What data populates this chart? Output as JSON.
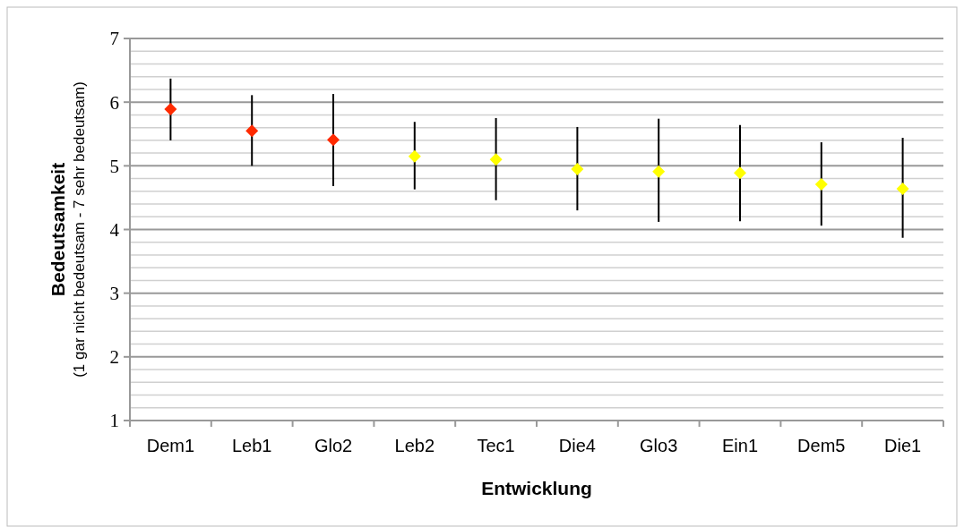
{
  "chart_data": {
    "type": "scatter",
    "xlabel": "Entwicklung",
    "ylabel": "Bedeutsamkeit\n(1 gar nicht bedeutsam - 7 sehr bedeutsam)",
    "categories": [
      "Dem1",
      "Leb1",
      "Glo2",
      "Leb2",
      "Tec1",
      "Die4",
      "Glo3",
      "Ein1",
      "Dem5",
      "Die1"
    ],
    "values": [
      5.89,
      5.55,
      5.41,
      5.15,
      5.1,
      4.95,
      4.91,
      4.89,
      4.71,
      4.64
    ],
    "colors": [
      "#ff2a00",
      "#ff2a00",
      "#ff2a00",
      "#ffff00",
      "#ffff00",
      "#ffff00",
      "#ffff00",
      "#ffff00",
      "#ffff00",
      "#ffff00"
    ],
    "errors": [
      [
        5.4,
        6.37
      ],
      [
        5.0,
        6.11
      ],
      [
        4.68,
        6.13
      ],
      [
        4.63,
        5.69
      ],
      [
        4.46,
        5.75
      ],
      [
        4.3,
        5.61
      ],
      [
        4.12,
        5.74
      ],
      [
        4.13,
        5.64
      ],
      [
        4.06,
        5.37
      ],
      [
        3.87,
        5.44
      ]
    ],
    "ylim": [
      1,
      7
    ],
    "yticks": [
      1,
      {
        "value": 1.2,
        "label": null
      },
      {
        "value": 1.4,
        "label": null
      },
      {
        "value": 1.6,
        "label": null
      },
      {
        "value": 1.8,
        "label": null
      },
      2,
      {
        "value": 2.2,
        "label": null
      },
      {
        "value": 2.4,
        "label": null
      },
      {
        "value": 2.6,
        "label": null
      },
      {
        "value": 2.8,
        "label": null
      },
      3,
      {
        "value": 3.2,
        "label": null
      },
      {
        "value": 3.4,
        "label": null
      },
      {
        "value": 3.6,
        "label": null
      },
      {
        "value": 3.8,
        "label": null
      },
      4,
      {
        "value": 4.2,
        "label": null
      },
      {
        "value": 4.4,
        "label": null
      },
      {
        "value": 4.6,
        "label": null
      },
      {
        "value": 4.8,
        "label": null
      },
      5,
      {
        "value": 5.2,
        "label": null
      },
      {
        "value": 5.4,
        "label": null
      },
      {
        "value": 5.6,
        "label": null
      },
      {
        "value": 5.8,
        "label": null
      },
      6,
      {
        "value": 6.2,
        "label": null
      },
      {
        "value": 6.4,
        "label": null
      },
      {
        "value": 6.6,
        "label": null
      },
      {
        "value": 6.8,
        "label": null
      },
      7
    ],
    "grid": "y",
    "marker": "diamond"
  }
}
